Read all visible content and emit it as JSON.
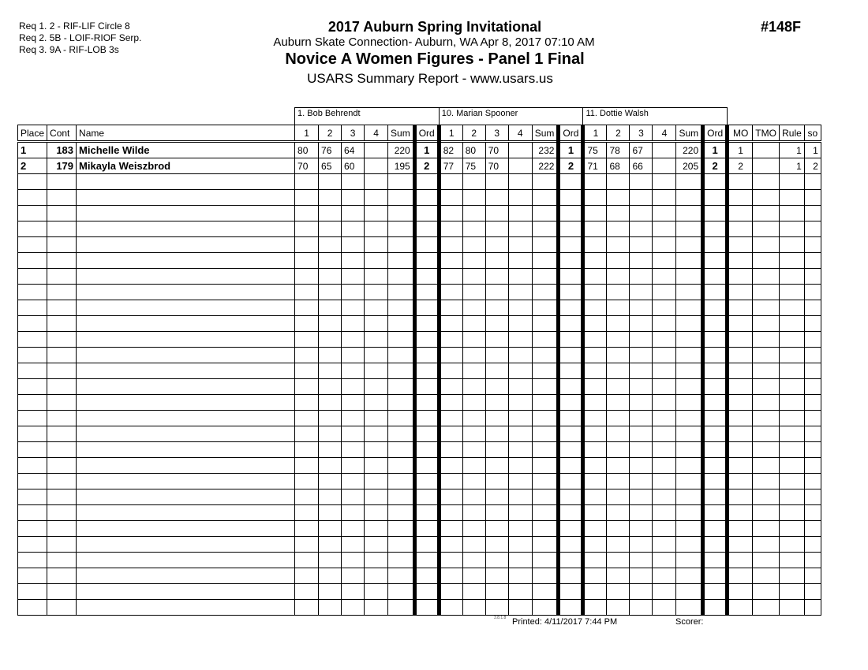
{
  "requirements": [
    "Req  1.  2 - RIF-LIF Circle 8",
    "Req  2.  5B - LOIF-RIOF Serp.",
    "Req  3.  9A - RIF-LOB 3s"
  ],
  "header": {
    "title": "2017 Auburn Spring Invitational",
    "venue": "Auburn Skate Connection- Auburn, WA  Apr 8, 2017  07:10 AM",
    "event": "Novice A Women Figures - Panel 1 Final",
    "report": "USARS Summary Report - www.usars.us",
    "event_number": "#148F"
  },
  "judges": [
    "1.  Bob Behrendt",
    "10.  Marian Spooner",
    "11.  Dottie Walsh"
  ],
  "columns": {
    "place": "Place",
    "cont": "Cont",
    "name": "Name",
    "scores": [
      "1",
      "2",
      "3",
      "4",
      "Sum",
      "Ord"
    ],
    "mo": "MO",
    "tmo": "TMO",
    "rule": "Rule",
    "so": "so"
  },
  "rows": [
    {
      "place": "1",
      "cont": "183",
      "name": "Michelle Wilde",
      "judges": [
        [
          "80",
          "76",
          "64",
          "",
          "220",
          "1"
        ],
        [
          "82",
          "80",
          "70",
          "",
          "232",
          "1"
        ],
        [
          "75",
          "78",
          "67",
          "",
          "220",
          "1"
        ]
      ],
      "mo": "1",
      "tmo": "",
      "rule": "1",
      "so": "1"
    },
    {
      "place": "2",
      "cont": "179",
      "name": "Mikayla Weiszbrod",
      "judges": [
        [
          "70",
          "65",
          "60",
          "",
          "195",
          "2"
        ],
        [
          "77",
          "75",
          "70",
          "",
          "222",
          "2"
        ],
        [
          "71",
          "68",
          "66",
          "",
          "205",
          "2"
        ]
      ],
      "mo": "2",
      "tmo": "",
      "rule": "1",
      "so": "2"
    }
  ],
  "empty_rows": 28,
  "footer": {
    "version": "3.8.1.8",
    "printed": "Printed:  4/11/2017  7:44 PM",
    "scorer": "Scorer:"
  }
}
